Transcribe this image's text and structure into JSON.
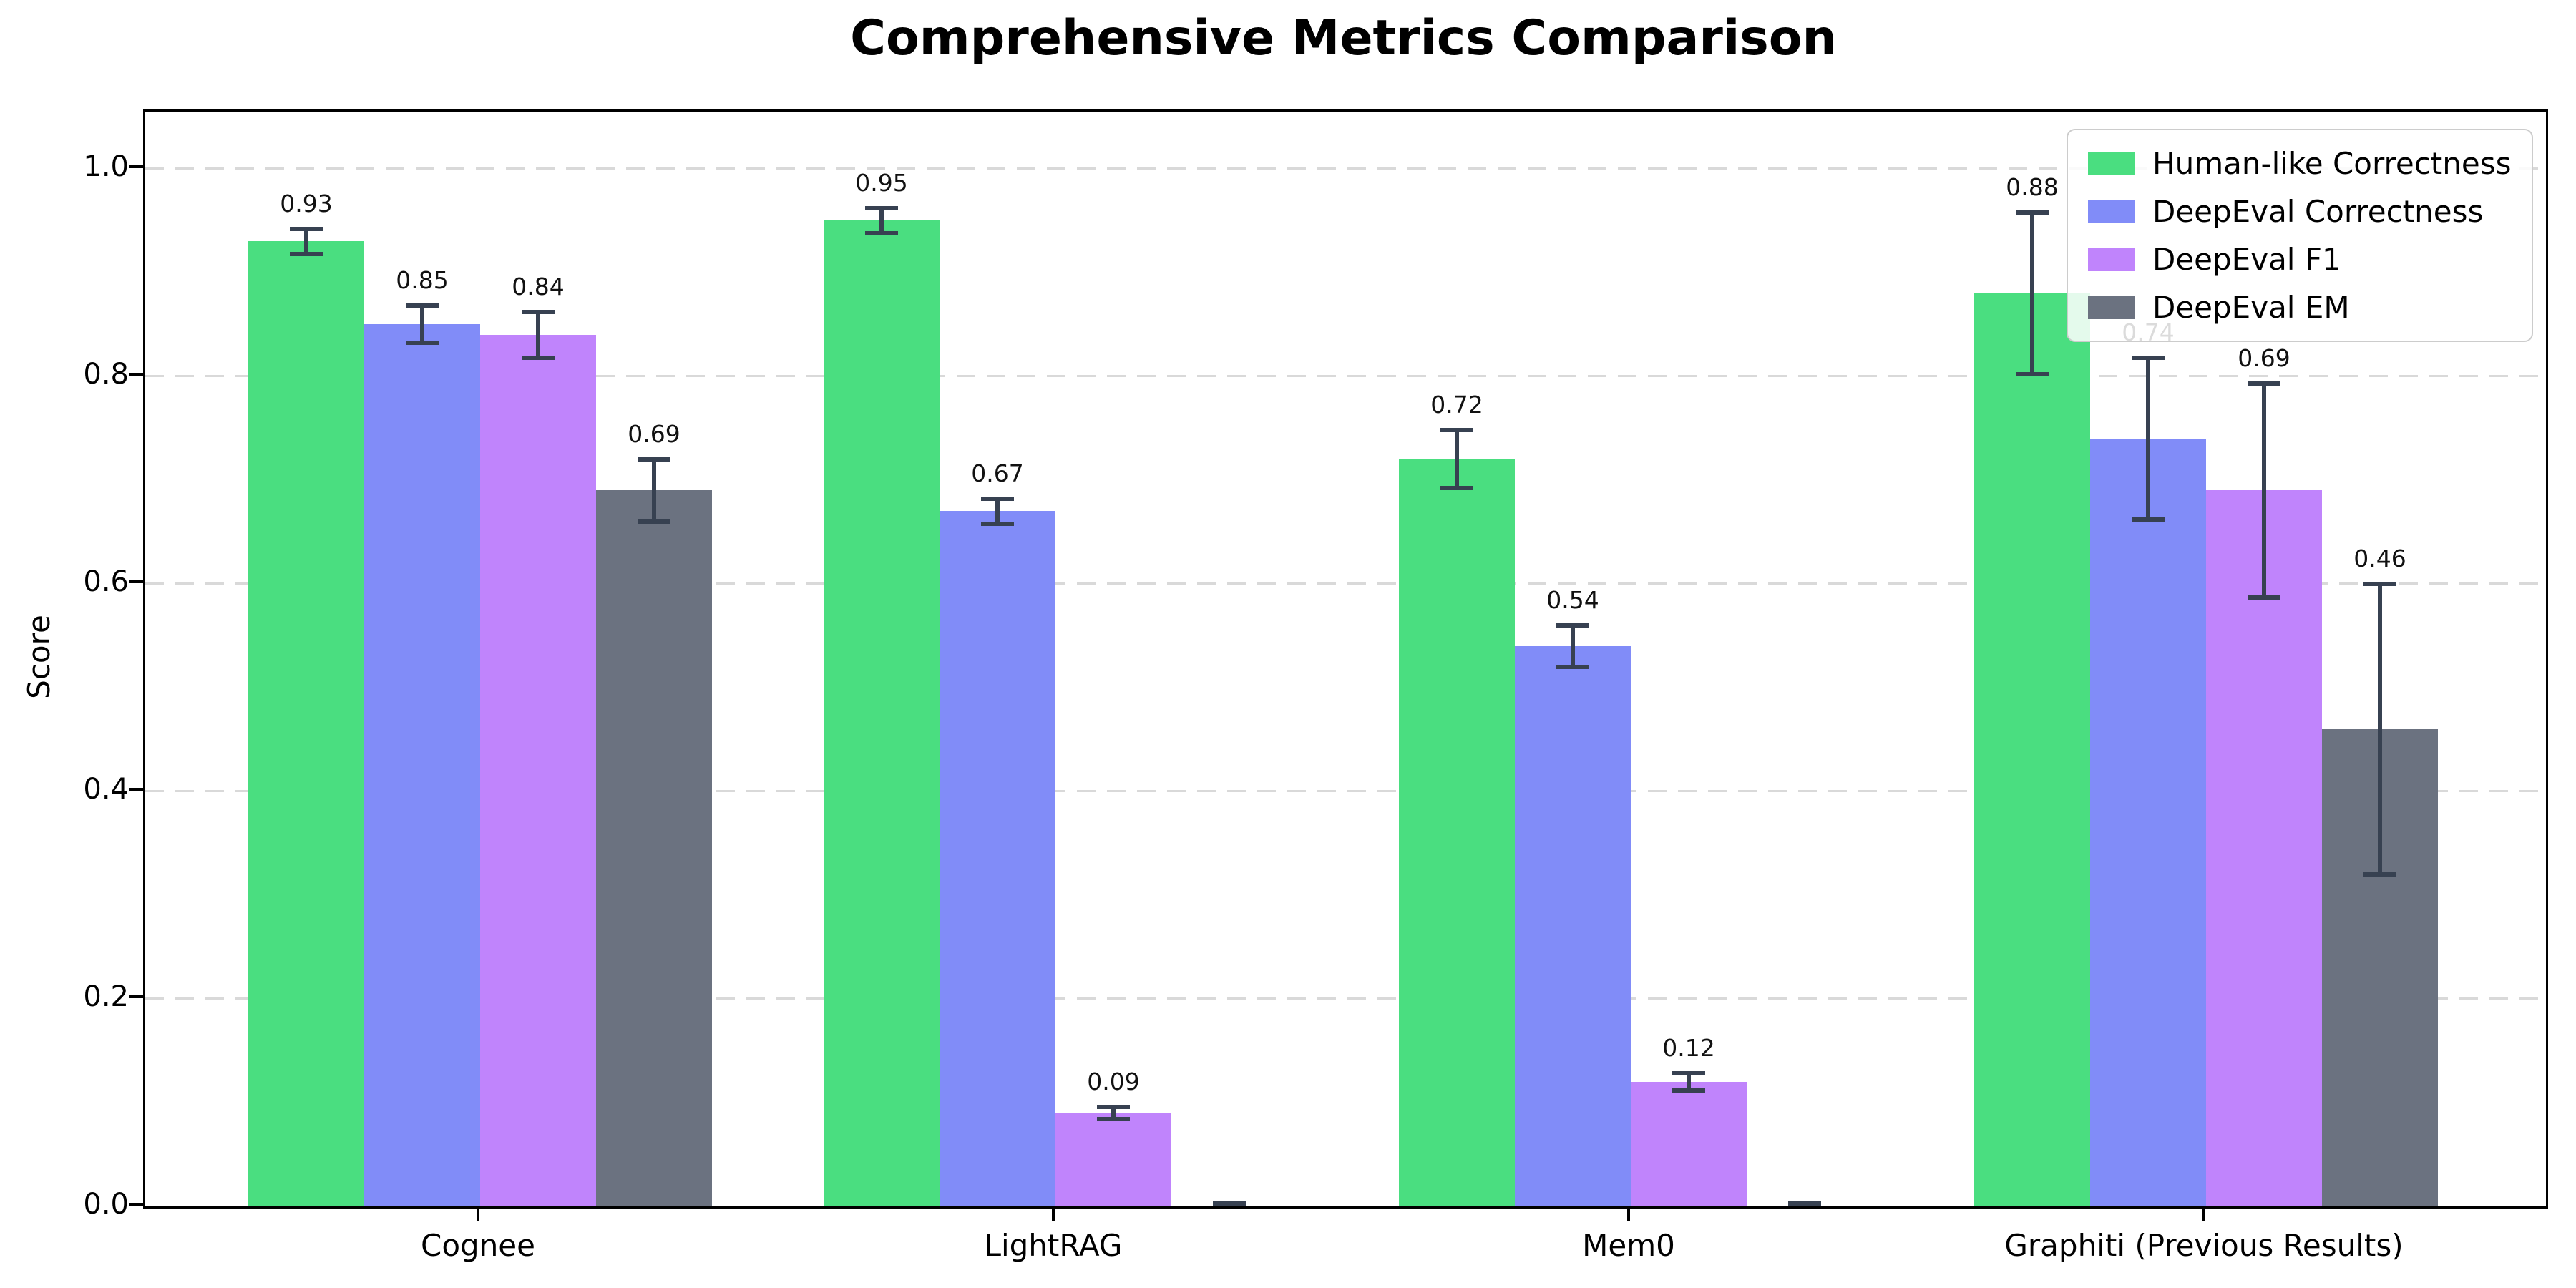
{
  "chart_data": {
    "type": "bar",
    "title": "Comprehensive Metrics Comparison",
    "ylabel": "Score",
    "xlabel": "",
    "categories": [
      "Cognee",
      "LightRAG",
      "Mem0",
      "Graphiti (Previous Results)"
    ],
    "series": [
      {
        "name": "Human-like Correctness",
        "color": "#4ade80",
        "values": [
          0.93,
          0.95,
          0.72,
          0.88
        ],
        "errors": [
          0.012,
          0.012,
          0.028,
          0.078
        ],
        "labels": [
          "0.93",
          "0.95",
          "0.72",
          "0.88"
        ]
      },
      {
        "name": "DeepEval Correctness",
        "color": "#818cf8",
        "values": [
          0.85,
          0.67,
          0.54,
          0.74
        ],
        "errors": [
          0.018,
          0.012,
          0.02,
          0.078
        ],
        "labels": [
          "0.85",
          "0.67",
          "0.54",
          "0.74"
        ]
      },
      {
        "name": "DeepEval F1",
        "color": "#c084fc",
        "values": [
          0.84,
          0.09,
          0.12,
          0.69
        ],
        "errors": [
          0.022,
          0.006,
          0.008,
          0.103
        ],
        "labels": [
          "0.84",
          "0.09",
          "0.12",
          "0.69"
        ]
      },
      {
        "name": "DeepEval EM",
        "color": "#6b7280",
        "values": [
          0.69,
          0.0,
          0.0,
          0.46
        ],
        "errors": [
          0.03,
          0.003,
          0.003,
          0.14
        ],
        "labels": [
          "0.69",
          "",
          "",
          "0.46"
        ]
      }
    ],
    "ylim": [
      0,
      1.055
    ],
    "yticks": [
      0.0,
      0.2,
      0.4,
      0.6,
      0.8,
      1.0
    ],
    "ytick_labels": [
      "0.0",
      "0.2",
      "0.4",
      "0.6",
      "0.8",
      "1.0"
    ],
    "grid": "horizontal-dashed",
    "legend_position": "upper-right",
    "error_bar_color": "#374151",
    "grid_color": "#d9d9d9"
  }
}
